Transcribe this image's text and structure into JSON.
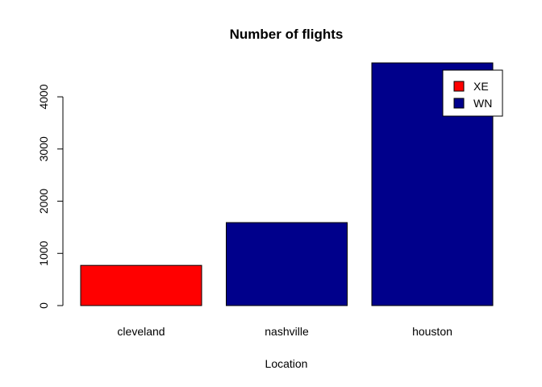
{
  "chart_data": {
    "type": "bar",
    "title": "Number of flights",
    "xlabel": "Location",
    "ylabel": "",
    "categories": [
      "cleveland",
      "nashville",
      "houston"
    ],
    "values": [
      770,
      1590,
      4650
    ],
    "bar_series": [
      "XE",
      "WN",
      "WN"
    ],
    "yticks": [
      0,
      1000,
      2000,
      3000,
      4000
    ],
    "ylim": [
      0,
      4650
    ],
    "grid": false,
    "legend": {
      "position": "top-right",
      "entries": [
        {
          "name": "XE",
          "color": "#ff0000"
        },
        {
          "name": "WN",
          "color": "#00008b"
        }
      ]
    }
  }
}
